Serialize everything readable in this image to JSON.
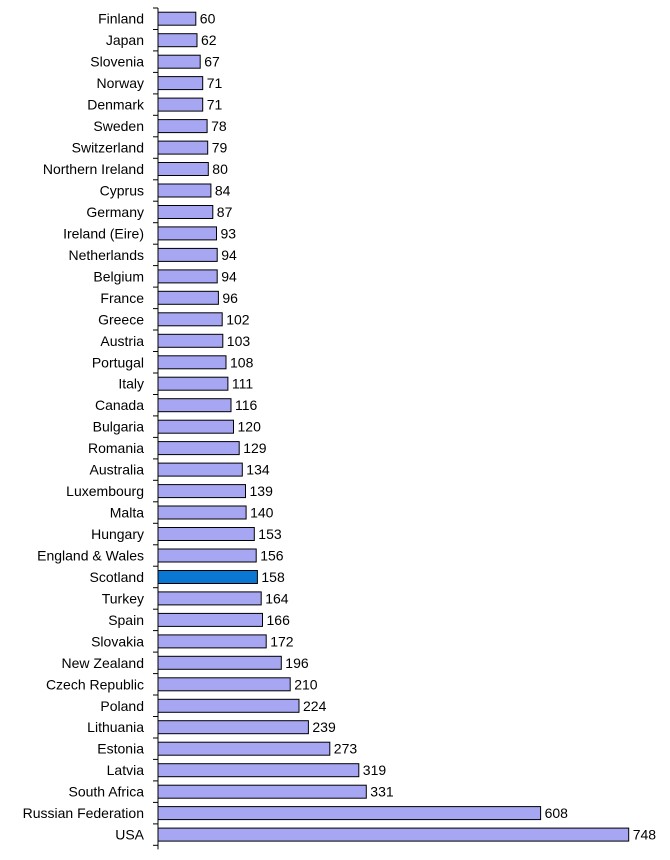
{
  "chart_data": {
    "type": "bar",
    "orientation": "horizontal",
    "title": "",
    "xlabel": "",
    "ylabel": "",
    "xlim": [
      0,
      750
    ],
    "grid": false,
    "legend": "none",
    "bar_color": "#A6A6F2",
    "highlight_color": "#0A78D2",
    "highlight_category": "Scotland",
    "categories": [
      "Finland",
      "Japan",
      "Slovenia",
      "Norway",
      "Denmark",
      "Sweden",
      "Switzerland",
      "Northern Ireland",
      "Cyprus",
      "Germany",
      "Ireland (Eire)",
      "Netherlands",
      "Belgium",
      "France",
      "Greece",
      "Austria",
      "Portugal",
      "Italy",
      "Canada",
      "Bulgaria",
      "Romania",
      "Australia",
      "Luxembourg",
      "Malta",
      "Hungary",
      "England & Wales",
      "Scotland",
      "Turkey",
      "Spain",
      "Slovakia",
      "New Zealand",
      "Czech Republic",
      "Poland",
      "Lithuania",
      "Estonia",
      "Latvia",
      "South Africa",
      "Russian Federation",
      "USA"
    ],
    "values": [
      60,
      62,
      67,
      71,
      71,
      78,
      79,
      80,
      84,
      87,
      93,
      94,
      94,
      96,
      102,
      103,
      108,
      111,
      116,
      120,
      129,
      134,
      139,
      140,
      153,
      156,
      158,
      164,
      166,
      172,
      196,
      210,
      224,
      239,
      273,
      319,
      331,
      608,
      748
    ]
  }
}
